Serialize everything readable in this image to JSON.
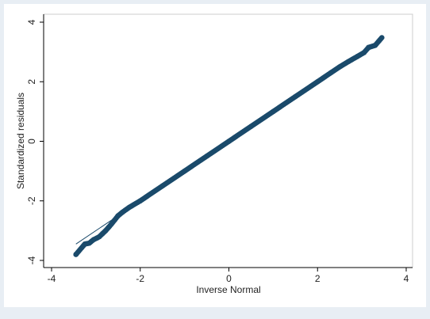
{
  "chart_data": {
    "type": "scatter",
    "xlabel": "Inverse Normal",
    "ylabel": "Standardized residuals",
    "xlim": [
      -4,
      4
    ],
    "ylim": [
      -4,
      4
    ],
    "xticks": [
      -4,
      -2,
      0,
      2,
      4
    ],
    "yticks": [
      -4,
      -2,
      0,
      2,
      4
    ],
    "xtick_labels": [
      "-4",
      "-2",
      "0",
      "2",
      "4"
    ],
    "ytick_labels": [
      "-4",
      "-2",
      "0",
      "2",
      "4"
    ],
    "grid": false,
    "legend": "none",
    "reference_line": {
      "x": [
        -3.45,
        3.45
      ],
      "y": [
        -3.45,
        3.45
      ]
    },
    "points": {
      "x": [
        -3.45,
        -3.25,
        -3.15,
        -3.05,
        -2.98,
        -2.92,
        -2.85,
        -2.78,
        -2.72,
        -2.65,
        -2.58,
        -2.5,
        -2.4,
        -2.25,
        -2.0,
        -1.5,
        -1.0,
        -0.5,
        0.0,
        0.5,
        1.0,
        1.5,
        2.0,
        2.3,
        2.5,
        2.7,
        2.9,
        3.05,
        3.15,
        3.3,
        3.45
      ],
      "y": [
        -3.8,
        -3.45,
        -3.42,
        -3.3,
        -3.25,
        -3.2,
        -3.1,
        -3.0,
        -2.9,
        -2.78,
        -2.65,
        -2.5,
        -2.38,
        -2.22,
        -2.0,
        -1.5,
        -1.0,
        -0.5,
        0.0,
        0.5,
        1.0,
        1.5,
        2.0,
        2.3,
        2.5,
        2.68,
        2.85,
        2.98,
        3.15,
        3.22,
        3.48
      ]
    }
  },
  "colors": {
    "outer_background": "#e8eef4",
    "plot_background": "#ffffff",
    "marker": "#1a4a6b",
    "reference_line": "#1a4a6b",
    "axis": "#000000"
  }
}
